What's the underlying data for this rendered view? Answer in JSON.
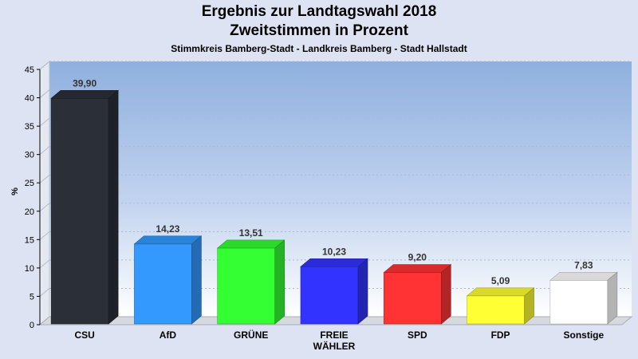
{
  "chart_data": {
    "type": "bar",
    "title": "Ergebnis zur Landtagswahl 2018",
    "subtitle": "Zweitstimmen in Prozent",
    "subsubtitle": "Stimmkreis Bamberg-Stadt - Landkreis Bamberg - Stadt Hallstadt",
    "ylabel": "%",
    "xlabel": "",
    "ylim": [
      0,
      45
    ],
    "yticks": [
      0,
      5,
      10,
      15,
      20,
      25,
      30,
      35,
      40,
      45
    ],
    "categories": [
      [
        "CSU"
      ],
      [
        "AfD"
      ],
      [
        "GRÜNE"
      ],
      [
        "FREIE",
        "WÄHLER"
      ],
      [
        "SPD"
      ],
      [
        "FDP"
      ],
      [
        "Sonstige"
      ]
    ],
    "values": [
      39.9,
      14.23,
      13.51,
      10.23,
      9.2,
      5.09,
      7.83
    ],
    "value_labels": [
      "39,90",
      "14,23",
      "13,51",
      "10,23",
      "9,20",
      "5,09",
      "7,83"
    ],
    "colors": [
      "#2b2f38",
      "#3399ff",
      "#33ff33",
      "#3333ff",
      "#ff3333",
      "#ffff33",
      "#ffffff"
    ],
    "grid": true,
    "legend": "none"
  }
}
